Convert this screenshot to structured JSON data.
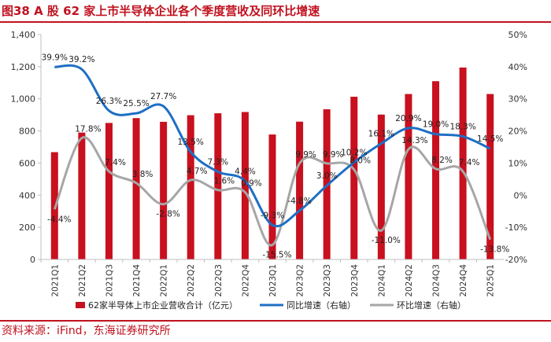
{
  "figure": {
    "title": "图38  A 股 62 家上市半导体企业各个季度营收及同环比增速",
    "source": "资料来源：iFind，东海证券研究所"
  },
  "colors": {
    "bar": "#c8101e",
    "yoy": "#1e6fc4",
    "qoq": "#a6a6a6",
    "accent": "#c0121f"
  },
  "chart_data": {
    "type": "bar",
    "title": "A 股 62 家上市半导体企业各个季度营收及同环比增速",
    "categories": [
      "2021Q1",
      "2021Q2",
      "2021Q3",
      "2021Q4",
      "2022Q1",
      "2022Q2",
      "2022Q3",
      "2022Q4",
      "2023Q1",
      "2023Q2",
      "2023Q3",
      "2023Q4",
      "2024Q1",
      "2024Q2",
      "2024Q3",
      "2024Q4",
      "2025Q1"
    ],
    "y_left": {
      "min": 0,
      "max": 1400,
      "step": 200,
      "tick_labels": [
        "0",
        "200",
        "400",
        "600",
        "800",
        "1,000",
        "1,200",
        "1,400"
      ]
    },
    "y_right": {
      "min": -20,
      "max": 50,
      "step": 10,
      "tick_labels": [
        "-20%",
        "-10%",
        "0%",
        "10%",
        "20%",
        "30%",
        "40%",
        "50%"
      ]
    },
    "legend_position": "bottom",
    "series": [
      {
        "name": "62家半导体上市企业营收合计（亿元）",
        "type": "bar",
        "axis": "left",
        "values": [
          668,
          790,
          850,
          880,
          857,
          898,
          910,
          918,
          778,
          858,
          935,
          1013,
          902,
          1030,
          1110,
          1195,
          1030
        ]
      },
      {
        "name": "同比增速（右轴）",
        "type": "line",
        "axis": "right",
        "values": [
          39.9,
          39.2,
          26.3,
          25.5,
          27.7,
          13.5,
          7.3,
          4.4,
          -9.3,
          -4.8,
          3.0,
          10.2,
          16.1,
          20.9,
          19.0,
          18.3,
          14.5
        ],
        "labels": [
          "39.9%",
          "39.2%",
          "26.3%",
          "25.5%",
          "27.7%",
          "13.5%",
          "7.3%",
          "4.4%",
          "-9.3%",
          "-4.8%",
          "3.0%",
          "10.2%",
          "16.1%",
          "20.9%",
          "19.0%",
          "18.3%",
          "14.5%"
        ]
      },
      {
        "name": "环比增速（右轴）",
        "type": "line",
        "axis": "right",
        "values": [
          -4.4,
          17.8,
          7.4,
          3.8,
          -2.8,
          4.7,
          1.6,
          0.9,
          -15.5,
          9.9,
          9.9,
          8.0,
          -11.0,
          14.3,
          8.2,
          7.4,
          -13.8
        ],
        "labels": [
          "-4.4%",
          "17.8%",
          "7.4%",
          "3.8%",
          "-2.8%",
          "4.7%",
          "1.6%",
          "0.9%",
          "-15.5%",
          "9.9%",
          "9.9%",
          "8.0%",
          "-11.0%",
          "14.3%",
          "8.2%",
          "7.4%",
          "-13.8%"
        ]
      }
    ]
  }
}
